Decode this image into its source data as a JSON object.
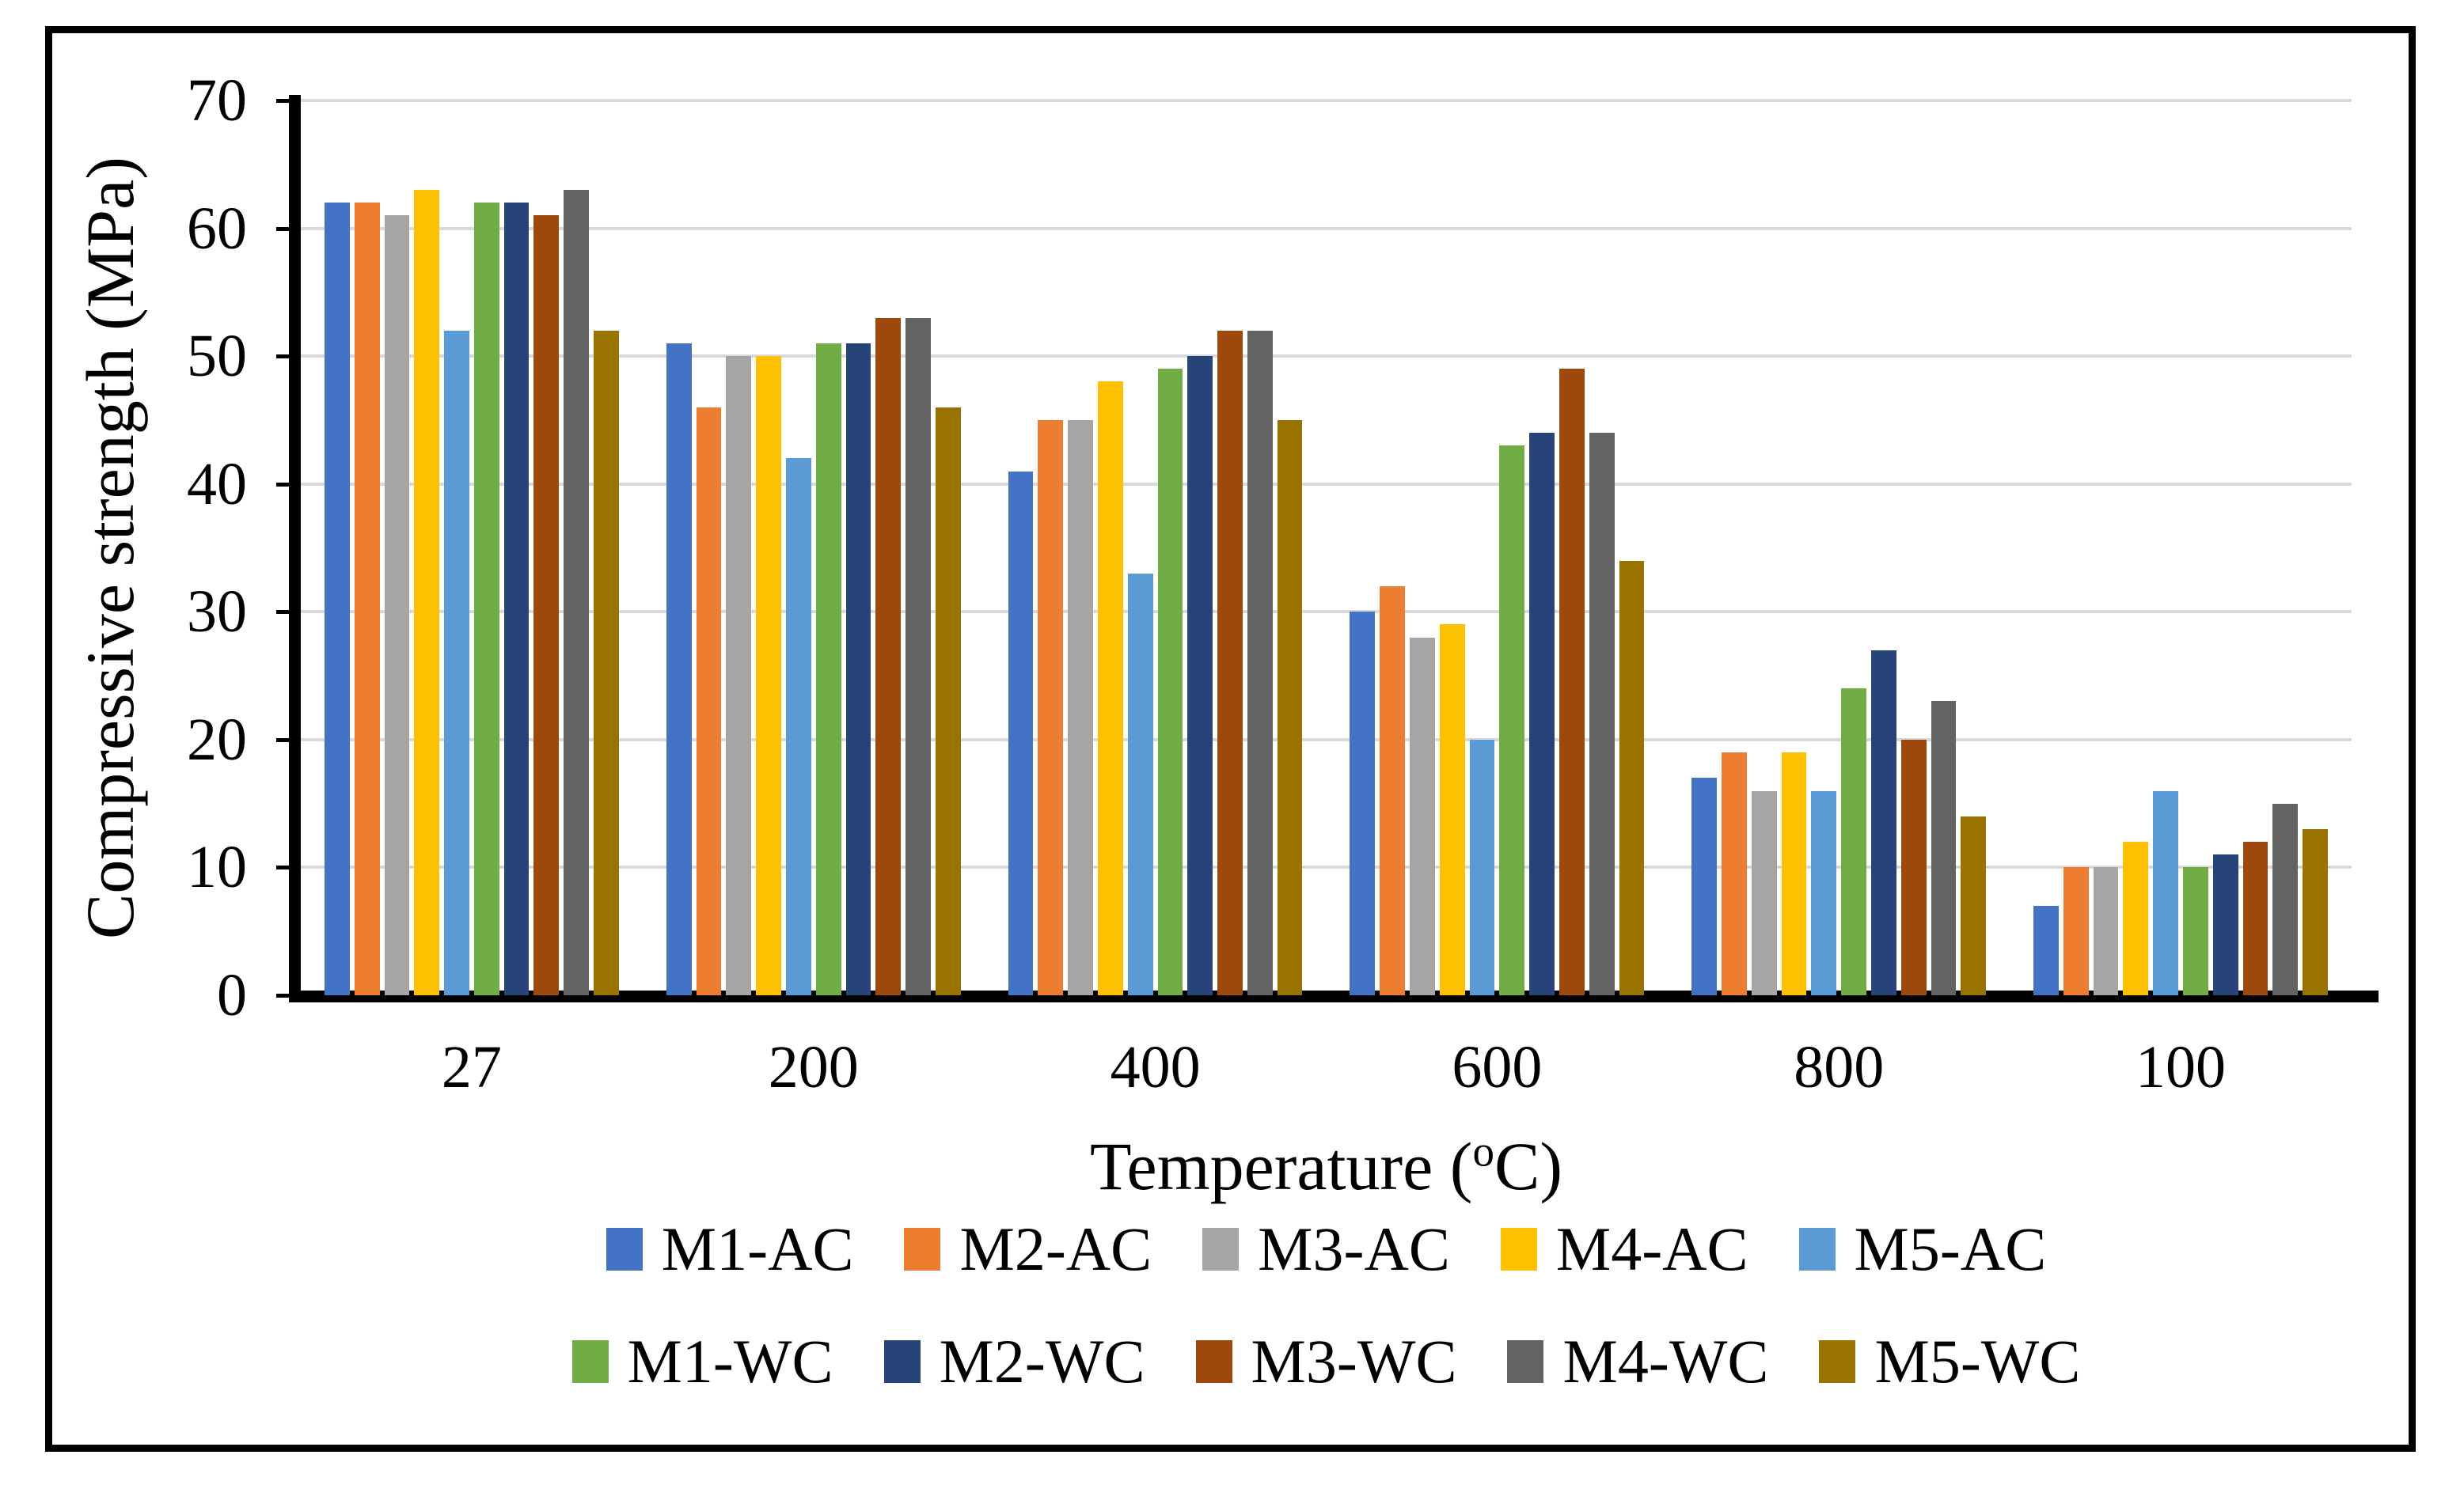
{
  "chart_data": {
    "type": "bar",
    "title": "",
    "xlabel_parts": {
      "prefix": "Temperature (",
      "sup": "o",
      "suffix": "C)"
    },
    "ylabel": "Compressive strength (MPa)",
    "ylim": [
      0,
      70
    ],
    "yticks": [
      0,
      10,
      20,
      30,
      40,
      50,
      60,
      70
    ],
    "grid": true,
    "gridline_color": "#D9D9D9",
    "axis_color": "#000000",
    "legend_position": "bottom",
    "categories": [
      "27",
      "200",
      "400",
      "600",
      "800",
      "100"
    ],
    "series": [
      {
        "name": "M1-AC",
        "color": "#4472C4",
        "values": [
          62,
          51,
          41,
          30,
          17,
          7
        ]
      },
      {
        "name": "M2-AC",
        "color": "#ED7D31",
        "values": [
          62,
          46,
          45,
          32,
          19,
          10
        ]
      },
      {
        "name": "M3-AC",
        "color": "#A5A5A5",
        "values": [
          61,
          50,
          45,
          28,
          16,
          10
        ]
      },
      {
        "name": "M4-AC",
        "color": "#FFC000",
        "values": [
          63,
          50,
          48,
          29,
          19,
          12
        ]
      },
      {
        "name": "M5-AC",
        "color": "#5B9BD5",
        "values": [
          52,
          42,
          33,
          20,
          16,
          16
        ]
      },
      {
        "name": "M1-WC",
        "color": "#70AD47",
        "values": [
          62,
          51,
          49,
          43,
          24,
          10
        ]
      },
      {
        "name": "M2-WC",
        "color": "#264478",
        "values": [
          62,
          51,
          50,
          44,
          27,
          11
        ]
      },
      {
        "name": "M3-WC",
        "color": "#9E480E",
        "values": [
          61,
          53,
          52,
          49,
          20,
          12
        ]
      },
      {
        "name": "M4-WC",
        "color": "#636363",
        "values": [
          63,
          53,
          52,
          44,
          23,
          15
        ]
      },
      {
        "name": "M5-WC",
        "color": "#997300",
        "values": [
          52,
          46,
          45,
          34,
          14,
          13
        ]
      }
    ],
    "legend_rows": [
      [
        "M1-AC",
        "M2-AC",
        "M3-AC",
        "M4-AC",
        "M5-AC"
      ],
      [
        "M1-WC",
        "M2-WC",
        "M3-WC",
        "M4-WC",
        "M5-WC"
      ]
    ]
  }
}
